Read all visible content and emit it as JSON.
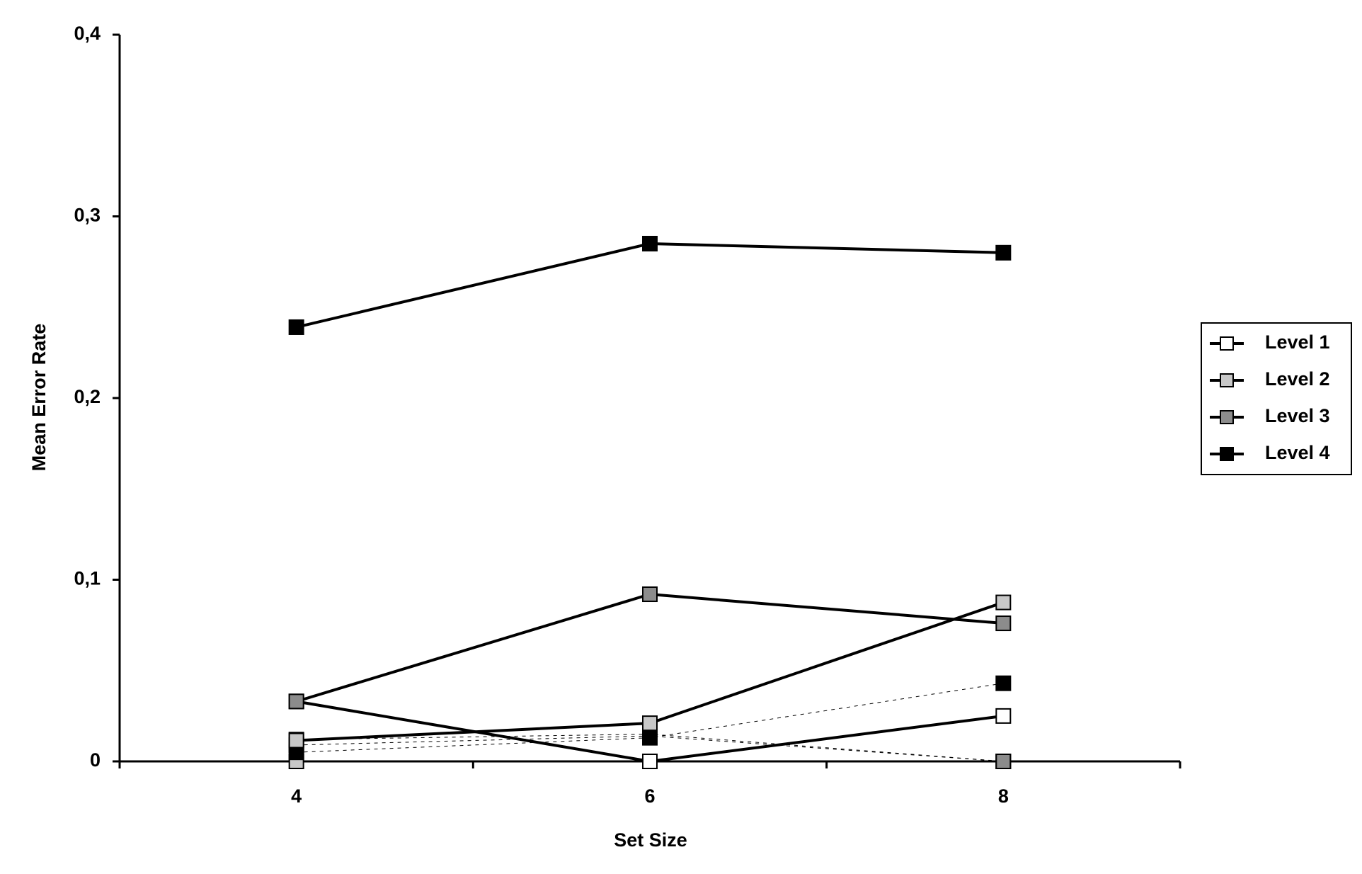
{
  "chart_data": {
    "type": "line",
    "x_label": "Set Size",
    "y_label": "Mean Error Rate",
    "categories": [
      "4",
      "6",
      "8"
    ],
    "ylim": [
      0,
      0.4
    ],
    "yticks": [
      0,
      {
        "value": 0.1,
        "label": "0,1"
      },
      {
        "value": 0.2,
        "label": "0,2"
      },
      {
        "value": 0.3,
        "label": "0,3"
      },
      {
        "value": 0.4,
        "label": "0,4"
      }
    ],
    "legend": "right",
    "series": [
      {
        "color": "#ffffff",
        "dash": true,
        "values": [
          0.012,
          0.015,
          0
        ]
      },
      {
        "color": "#c8c8c8",
        "dash": true,
        "values": [
          0,
          0,
          0
        ]
      },
      {
        "color": "#8c8c8c",
        "dash": true,
        "values": [
          0.009,
          0.014,
          0
        ]
      },
      {
        "color": "#000000",
        "dash": true,
        "values": [
          0.005,
          0.013,
          0.043
        ]
      },
      {
        "name": "Level 1",
        "color": "#ffffff",
        "values": [
          0.033,
          0,
          0.025
        ]
      },
      {
        "name": "Level 2",
        "color": "#c8c8c8",
        "values": [
          0.0115,
          0.021,
          0.0875
        ]
      },
      {
        "name": "Level 3",
        "color": "#8c8c8c",
        "values": [
          0.033,
          0.092,
          0.076
        ]
      },
      {
        "name": "Level 4",
        "color": "#000000",
        "values": [
          0.239,
          0.285,
          0.28
        ]
      }
    ]
  }
}
